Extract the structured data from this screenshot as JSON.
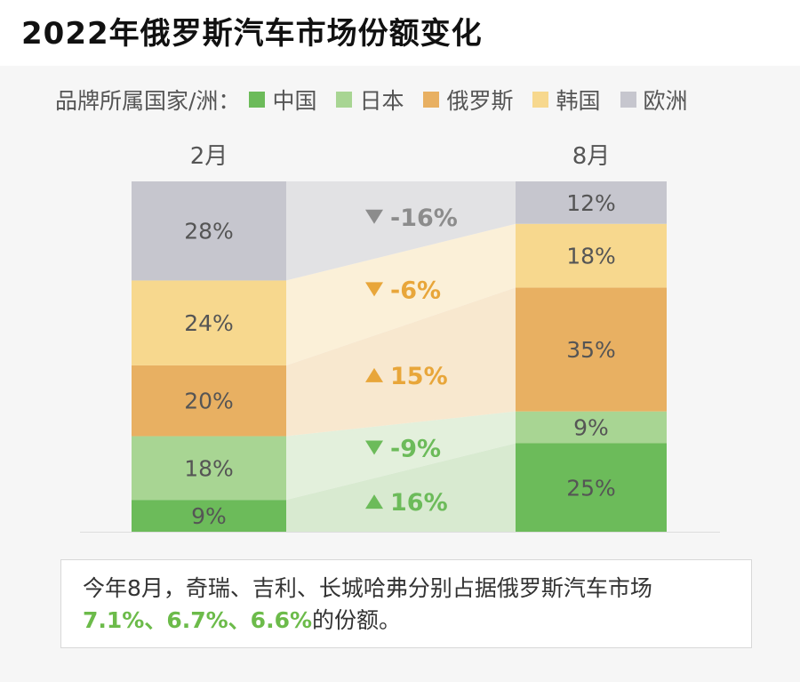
{
  "title": "2022年俄罗斯汽车市场份额变化",
  "legend": {
    "label": "品牌所属国家/洲：",
    "items": [
      {
        "name": "中国",
        "color": "#6cbb5a"
      },
      {
        "name": "日本",
        "color": "#a8d593"
      },
      {
        "name": "俄罗斯",
        "color": "#e8b062"
      },
      {
        "name": "韩国",
        "color": "#f7d88e"
      },
      {
        "name": "欧洲",
        "color": "#c6c6ce"
      }
    ]
  },
  "chart_data": {
    "type": "bar",
    "stacked": true,
    "ylim": [
      0,
      100
    ],
    "categories": [
      "2月",
      "8月"
    ],
    "series": [
      {
        "name": "中国",
        "values": [
          9,
          25
        ],
        "labels": [
          "9%",
          "25%"
        ],
        "change": "16%",
        "direction": "up",
        "change_color": "#6cbb5a"
      },
      {
        "name": "日本",
        "values": [
          18,
          9
        ],
        "labels": [
          "18%",
          "9%"
        ],
        "change": "-9%",
        "direction": "down",
        "change_color": "#6cbb5a"
      },
      {
        "name": "俄罗斯",
        "values": [
          20,
          35
        ],
        "labels": [
          "20%",
          "35%"
        ],
        "change": "15%",
        "direction": "up",
        "change_color": "#e8a63a"
      },
      {
        "name": "韩国",
        "values": [
          24,
          18
        ],
        "labels": [
          "24%",
          "18%"
        ],
        "change": "-6%",
        "direction": "down",
        "change_color": "#e8a63a"
      },
      {
        "name": "欧洲",
        "values": [
          28,
          12
        ],
        "labels": [
          "28%",
          "12%"
        ],
        "change": "-16%",
        "direction": "down",
        "change_color": "#8c8c8c"
      }
    ]
  },
  "note": {
    "text": "今年8月，奇瑞、吉利、长城哈弗分别占据俄罗斯汽车市场",
    "highlight": "7.1%、6.7%、6.6%",
    "suffix": "的份额。"
  }
}
